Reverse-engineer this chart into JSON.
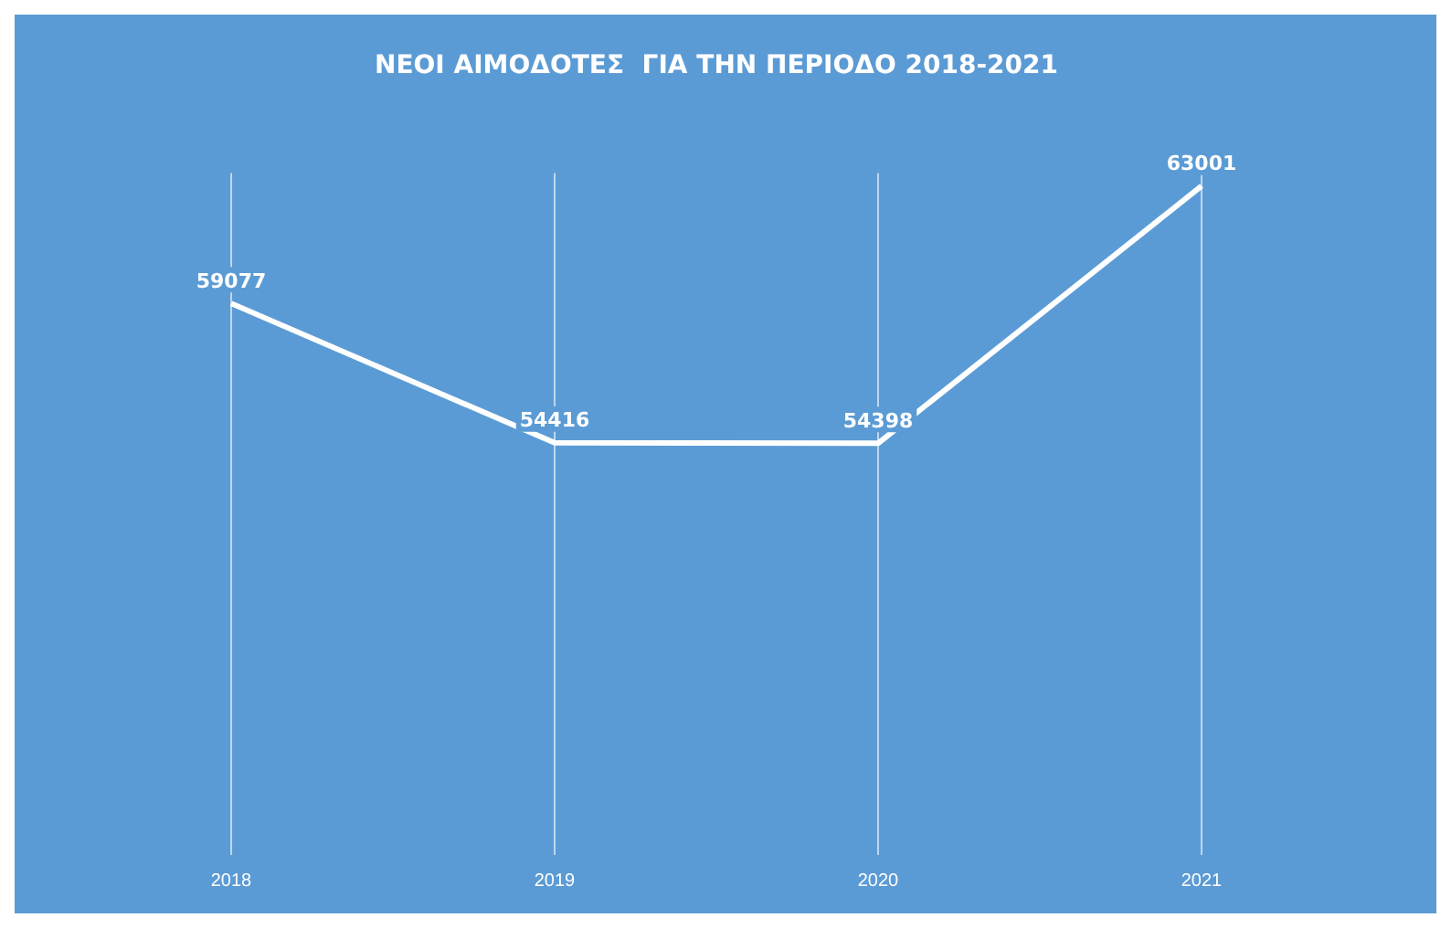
{
  "chart_data": {
    "type": "line",
    "title": "ΝΕΟΙ ΑΙΜΟΔΟΤΕΣ  ΓΙΑ ΤΗΝ ΠΕΡΙΟΔΟ 2018-2021",
    "categories": [
      "2018",
      "2019",
      "2020",
      "2021"
    ],
    "series": [
      {
        "color": "#ffffff",
        "values": [
          59077,
          54416,
          54398,
          63001
        ]
      }
    ],
    "data_labels": true,
    "grid": "x",
    "legend": false,
    "marker": "none"
  }
}
